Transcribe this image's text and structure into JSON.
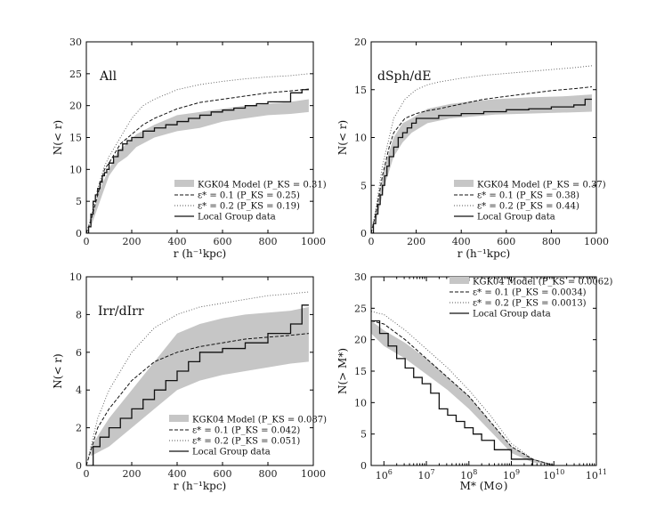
{
  "figure": "Four-panel cumulative distribution comparison",
  "legend_text": {
    "model": "KGK04 Model",
    "eps01": "ε* = 0.1",
    "eps02": "ε* = 0.2",
    "data": "Local Group data"
  },
  "chart_data": [
    {
      "id": "all",
      "type": "line",
      "panel_label": "All",
      "xlabel": "r (h⁻¹kpc)",
      "ylabel": "N(< r)",
      "xlim": [
        0,
        1000
      ],
      "ylim": [
        0,
        30
      ],
      "xticks": [
        0,
        200,
        400,
        600,
        800,
        1000
      ],
      "yticks": [
        0,
        5,
        10,
        15,
        20,
        25,
        30
      ],
      "pks": {
        "model": "(P_KS = 0.31)",
        "eps01": "(P_KS = 0.25)",
        "eps02": "(P_KS = 0.19)"
      },
      "band": {
        "x": [
          20,
          60,
          100,
          140,
          180,
          220,
          300,
          400,
          500,
          600,
          700,
          800,
          900,
          980
        ],
        "lower": [
          1,
          5,
          9,
          11,
          12,
          13.5,
          15,
          16,
          16.5,
          17.5,
          18,
          18.5,
          18.7,
          19
        ],
        "upper": [
          2,
          7,
          10,
          13,
          14,
          15.5,
          17,
          18.5,
          19,
          19.5,
          20,
          20.3,
          20.6,
          21
        ]
      },
      "eps01": {
        "x": [
          0,
          20,
          50,
          80,
          100,
          150,
          200,
          250,
          300,
          400,
          500,
          600,
          700,
          800,
          900,
          980
        ],
        "y": [
          0,
          2,
          6,
          10,
          11,
          14,
          15.5,
          17,
          18,
          19.5,
          20.5,
          21,
          21.5,
          22,
          22.3,
          22.6
        ]
      },
      "eps02": {
        "x": [
          0,
          20,
          50,
          80,
          100,
          150,
          200,
          250,
          300,
          400,
          500,
          600,
          700,
          800,
          900,
          980
        ],
        "y": [
          0,
          2.5,
          7,
          10.5,
          12,
          15,
          18,
          20,
          21,
          22.5,
          23.3,
          23.8,
          24.2,
          24.5,
          24.7,
          25
        ]
      },
      "data": {
        "x": [
          0,
          10,
          20,
          30,
          40,
          50,
          60,
          70,
          80,
          90,
          100,
          120,
          140,
          160,
          180,
          200,
          250,
          300,
          350,
          400,
          450,
          500,
          550,
          600,
          650,
          700,
          750,
          800,
          900,
          950,
          980
        ],
        "y": [
          0,
          1,
          3,
          5,
          6,
          7,
          8,
          9,
          9.5,
          10,
          11,
          12,
          13,
          14,
          14.5,
          15,
          16,
          16.5,
          17,
          17.5,
          18,
          18.5,
          19,
          19.3,
          19.6,
          20,
          20.3,
          20.6,
          22,
          22.5,
          22.5
        ]
      }
    },
    {
      "id": "dsph",
      "type": "line",
      "panel_label": "dSph/dE",
      "xlabel": "r (h⁻¹kpc)",
      "ylabel": "N(< r)",
      "xlim": [
        0,
        1000
      ],
      "ylim": [
        0,
        20
      ],
      "xticks": [
        0,
        200,
        400,
        600,
        800,
        1000
      ],
      "yticks": [
        0,
        5,
        10,
        15,
        20
      ],
      "pks": {
        "model": "(P_KS = 0.37)",
        "eps01": "(P_KS = 0.38)",
        "eps02": "(P_KS = 0.44)"
      },
      "band": {
        "x": [
          20,
          60,
          100,
          140,
          180,
          250,
          350,
          450,
          550,
          700,
          850,
          980
        ],
        "lower": [
          1,
          5,
          8,
          9.5,
          10.5,
          11.5,
          12,
          12.2,
          12.4,
          12.5,
          12.6,
          12.7
        ],
        "upper": [
          2,
          7,
          10,
          11.5,
          12,
          13,
          13.5,
          13.8,
          14,
          14.2,
          14.3,
          14.5
        ]
      },
      "eps01": {
        "x": [
          0,
          20,
          50,
          80,
          100,
          150,
          200,
          250,
          300,
          400,
          500,
          600,
          700,
          800,
          900,
          980
        ],
        "y": [
          0,
          2,
          6,
          9,
          10.5,
          12,
          12.5,
          12.8,
          13,
          13.5,
          14,
          14.3,
          14.6,
          14.9,
          15.1,
          15.3
        ]
      },
      "eps02": {
        "x": [
          0,
          20,
          50,
          80,
          100,
          150,
          200,
          250,
          300,
          400,
          500,
          600,
          700,
          800,
          900,
          980
        ],
        "y": [
          0,
          2.5,
          7,
          10,
          12,
          14,
          15,
          15.5,
          15.8,
          16.2,
          16.5,
          16.7,
          16.9,
          17.1,
          17.3,
          17.5
        ]
      },
      "data": {
        "x": [
          0,
          10,
          20,
          30,
          40,
          50,
          60,
          70,
          80,
          100,
          120,
          140,
          160,
          180,
          200,
          300,
          400,
          500,
          600,
          700,
          800,
          900,
          950,
          980
        ],
        "y": [
          0,
          1,
          2,
          3,
          4,
          5,
          6,
          7,
          8,
          9,
          10,
          10.5,
          11,
          11.5,
          12,
          12.3,
          12.5,
          12.7,
          12.9,
          13,
          13.2,
          13.4,
          14,
          14
        ]
      }
    },
    {
      "id": "irr",
      "type": "line",
      "panel_label": "Irr/dIrr",
      "xlabel": "r (h⁻¹kpc)",
      "ylabel": "N(< r)",
      "xlim": [
        0,
        1000
      ],
      "ylim": [
        0,
        10
      ],
      "xticks": [
        0,
        200,
        400,
        600,
        800,
        1000
      ],
      "yticks": [
        0,
        2,
        4,
        6,
        8,
        10
      ],
      "pks": {
        "model": "(P_KS = 0.087)",
        "eps01": "(P_KS = 0.042)",
        "eps02": "(P_KS = 0.051)"
      },
      "band": {
        "x": [
          20,
          100,
          200,
          300,
          400,
          500,
          600,
          700,
          800,
          900,
          980
        ],
        "lower": [
          0.5,
          1,
          2,
          3,
          4,
          4.5,
          4.8,
          5,
          5.2,
          5.4,
          5.5
        ],
        "upper": [
          1,
          2.5,
          4,
          5.5,
          7,
          7.5,
          7.8,
          8,
          8.1,
          8.2,
          8.4
        ]
      },
      "eps01": {
        "x": [
          0,
          50,
          100,
          200,
          300,
          400,
          500,
          600,
          700,
          800,
          900,
          980
        ],
        "y": [
          0,
          2,
          3,
          4.5,
          5.5,
          6,
          6.3,
          6.5,
          6.7,
          6.8,
          6.9,
          7
        ]
      },
      "eps02": {
        "x": [
          0,
          50,
          100,
          200,
          300,
          400,
          500,
          600,
          700,
          800,
          900,
          980
        ],
        "y": [
          0,
          2.5,
          4,
          6,
          7.3,
          8,
          8.4,
          8.6,
          8.8,
          9,
          9.1,
          9.2
        ]
      },
      "data": {
        "x": [
          20,
          30,
          60,
          100,
          150,
          200,
          250,
          300,
          350,
          400,
          450,
          500,
          600,
          700,
          800,
          900,
          950,
          980
        ],
        "y": [
          0,
          1,
          1.5,
          2,
          2.5,
          3,
          3.5,
          4,
          4.5,
          5,
          5.5,
          6,
          6.2,
          6.5,
          7,
          7.5,
          8.5,
          8.5
        ]
      }
    },
    {
      "id": "mass",
      "type": "line",
      "x_scale": "log",
      "xlabel": "M* (M⊙)",
      "ylabel": "N(> M*)",
      "xlim_log10": [
        5.7,
        11
      ],
      "ylim": [
        0,
        30
      ],
      "xtick_exponents": [
        6,
        7,
        8,
        9,
        10,
        11
      ],
      "yticks": [
        0,
        5,
        10,
        15,
        20,
        25,
        30
      ],
      "pks": {
        "model": "(P_KS = 0.0062)",
        "eps01": "(P_KS = 0.0034)",
        "eps02": "(P_KS = 0.0013)"
      },
      "band": {
        "logx": [
          5.7,
          6,
          6.5,
          7,
          7.5,
          8,
          8.5,
          9,
          9.5,
          10
        ],
        "lower": [
          21,
          19,
          17,
          14.5,
          12,
          9,
          5.5,
          2,
          0.5,
          0
        ],
        "upper": [
          23,
          21.5,
          19.5,
          17,
          14,
          11,
          7,
          3,
          1,
          0.2
        ]
      },
      "eps01": {
        "logx": [
          5.7,
          6,
          6.5,
          7,
          7.5,
          8,
          8.5,
          9,
          9.5,
          10
        ],
        "y": [
          23,
          22.5,
          20,
          17,
          14,
          11,
          7,
          3,
          1,
          0
        ]
      },
      "eps02": {
        "logx": [
          5.7,
          6,
          6.5,
          7,
          7.5,
          8,
          8.5,
          9,
          9.5,
          10
        ],
        "y": [
          24.5,
          24,
          21.5,
          18.5,
          15.5,
          12,
          8,
          3.5,
          1,
          0
        ]
      },
      "data": {
        "logx": [
          5.7,
          5.9,
          6.1,
          6.3,
          6.5,
          6.7,
          6.9,
          7.1,
          7.3,
          7.5,
          7.7,
          7.9,
          8.1,
          8.3,
          8.6,
          9,
          9.5
        ],
        "y": [
          23,
          21,
          19,
          17,
          15.5,
          14,
          13,
          11.5,
          9,
          8,
          7,
          6,
          5,
          4,
          2.5,
          1,
          0
        ]
      }
    }
  ]
}
